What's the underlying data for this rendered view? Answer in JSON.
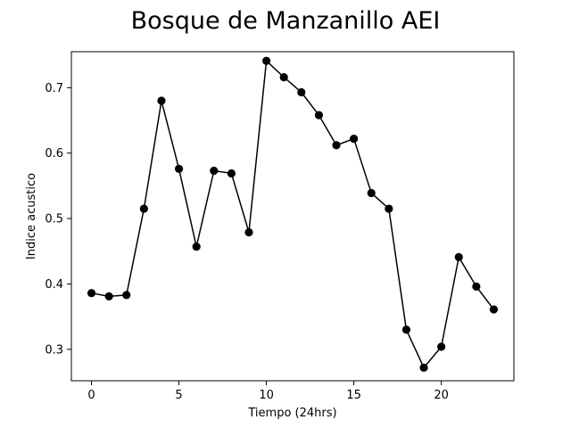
{
  "chart_data": {
    "type": "line",
    "title": "Bosque de Manzanillo AEI",
    "xlabel": "Tiempo (24hrs)",
    "ylabel": "Indice acustico",
    "xlim": [
      -1.15,
      24.15
    ],
    "ylim": [
      0.252,
      0.755
    ],
    "xticks": [
      0,
      5,
      10,
      15,
      20
    ],
    "yticks": [
      0.3,
      0.4,
      0.5,
      0.6,
      0.7
    ],
    "xtick_labels": [
      "0",
      "5",
      "10",
      "15",
      "20"
    ],
    "ytick_labels": [
      "0.3",
      "0.4",
      "0.5",
      "0.6",
      "0.7"
    ],
    "grid": false,
    "legend": "none",
    "series": [
      {
        "color": "#000000",
        "marker": "circle",
        "x": [
          0,
          1,
          2,
          3,
          4,
          5,
          6,
          7,
          8,
          9,
          10,
          11,
          12,
          13,
          14,
          15,
          16,
          17,
          18,
          19,
          20,
          21,
          22,
          23
        ],
        "y": [
          0.386,
          0.381,
          0.383,
          0.515,
          0.68,
          0.576,
          0.457,
          0.573,
          0.569,
          0.479,
          0.741,
          0.716,
          0.693,
          0.658,
          0.612,
          0.622,
          0.539,
          0.515,
          0.33,
          0.272,
          0.304,
          0.441,
          0.396,
          0.361
        ]
      }
    ]
  }
}
